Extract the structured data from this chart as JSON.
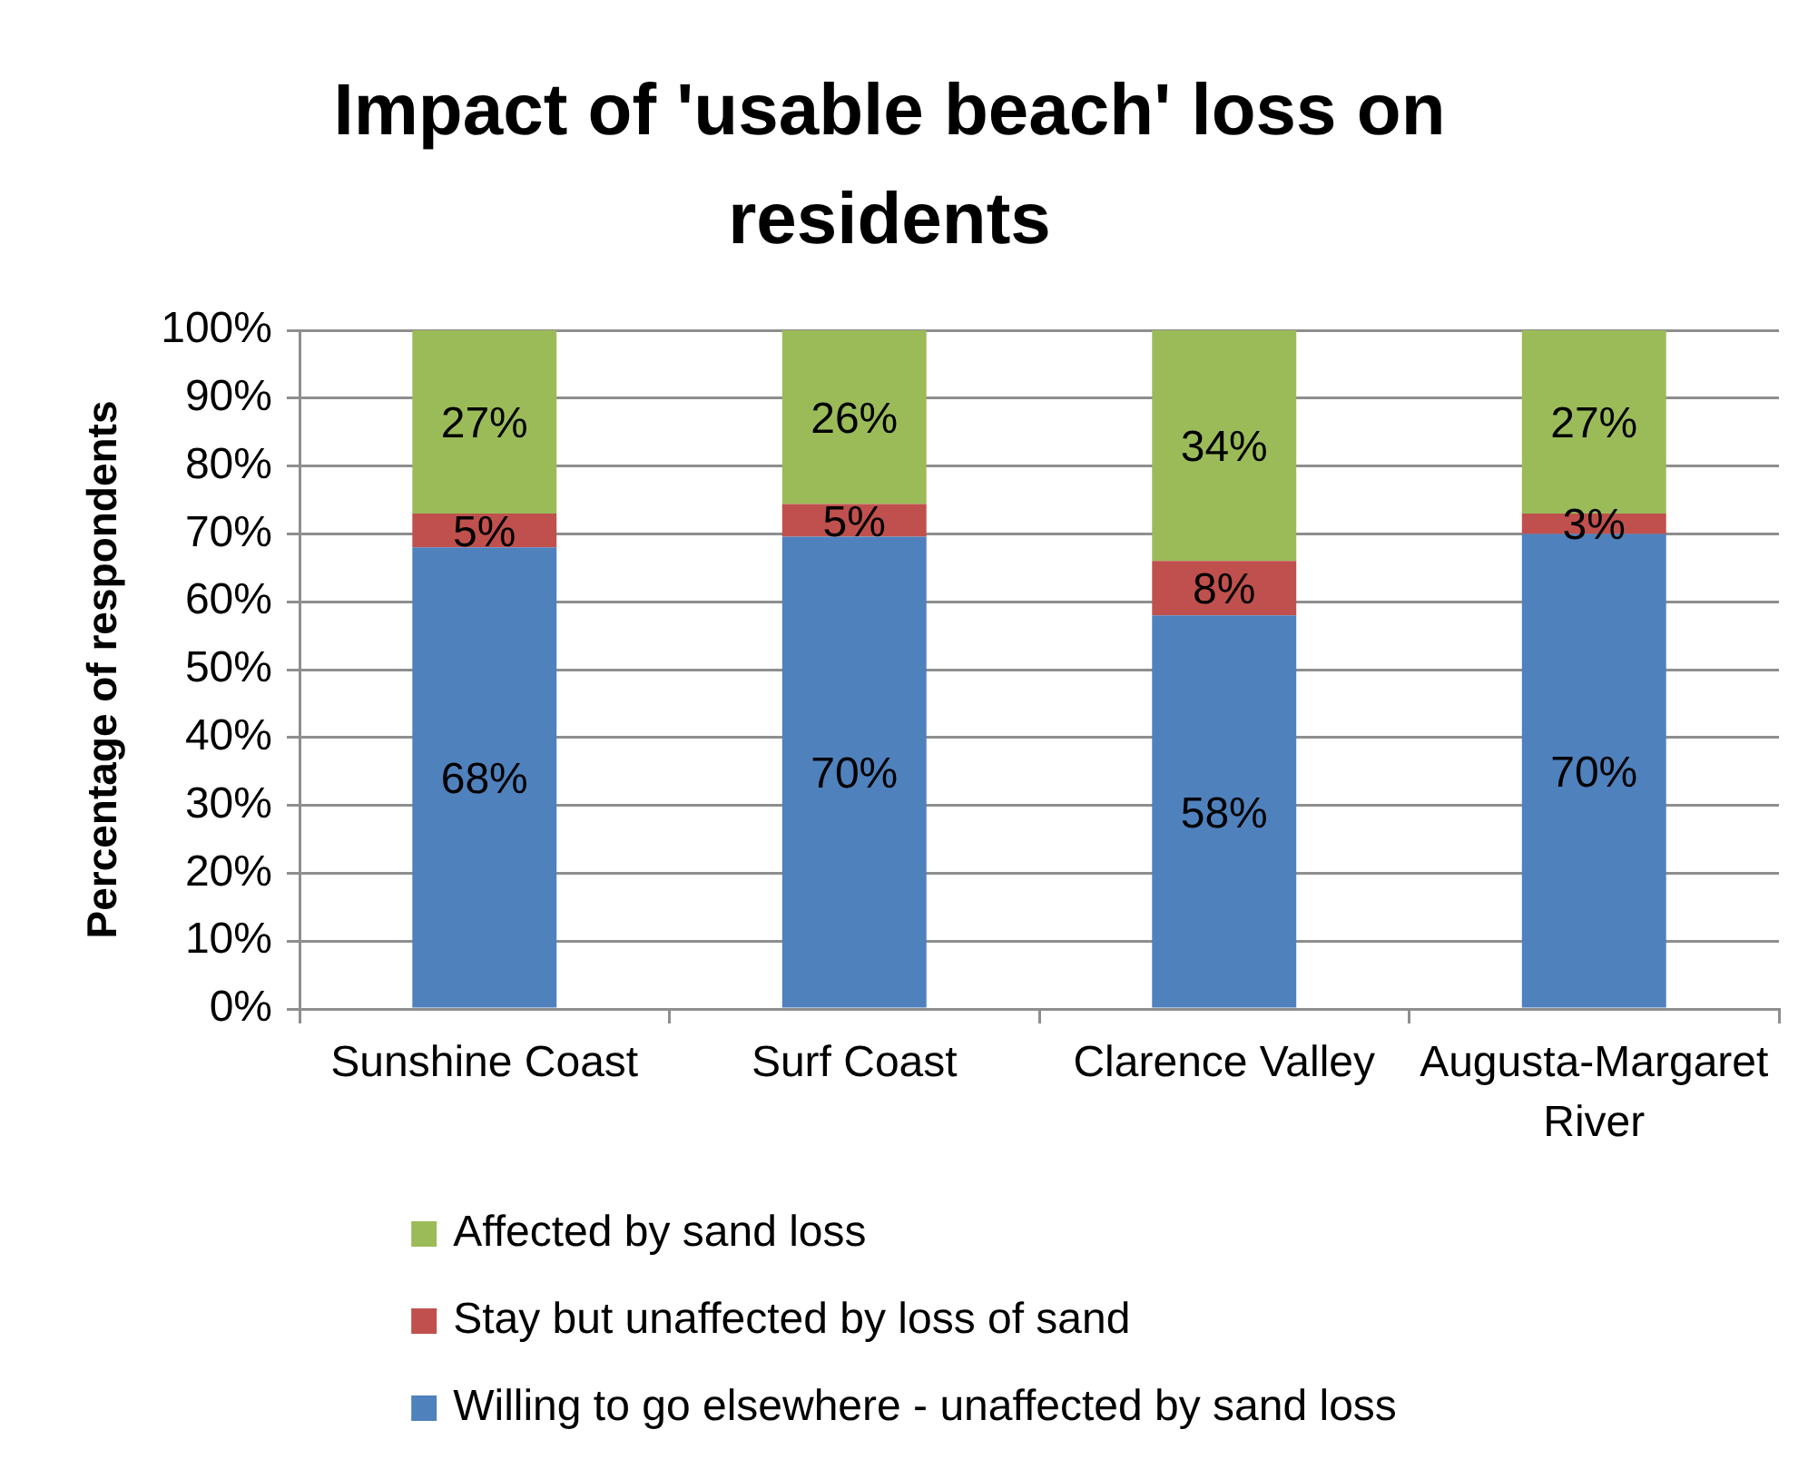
{
  "chart_data": {
    "type": "bar",
    "title": "Impact of 'usable beach' loss on residents",
    "ylabel": "Percentage of respondents",
    "categories": [
      "Sunshine Coast",
      "Surf Coast",
      "Clarence Valley",
      "Augusta-Margaret River"
    ],
    "stacked": true,
    "series": [
      {
        "name": "Willing to go elsewhere - unaffected by sand loss",
        "color": "#4f81bd",
        "values": [
          68,
          69.6,
          58,
          70
        ],
        "value_labels": [
          "68%",
          "70%",
          "58%",
          "70%"
        ]
      },
      {
        "name": "Stay but unaffected by loss of sand",
        "color": "#c0504d",
        "values": [
          5,
          4.8,
          8,
          3
        ],
        "value_labels": [
          "5%",
          "5%",
          "8%",
          "3%"
        ]
      },
      {
        "name": "Affected by sand loss",
        "color": "#9bbb59",
        "values": [
          27,
          25.6,
          34,
          27
        ],
        "value_labels": [
          "27%",
          "26%",
          "34%",
          "27%"
        ]
      }
    ],
    "ylim": [
      0,
      100
    ],
    "yticks": [
      {
        "value": 0,
        "label": "0%"
      },
      {
        "value": 10,
        "label": "10%"
      },
      {
        "value": 20,
        "label": "20%"
      },
      {
        "value": 30,
        "label": "30%"
      },
      {
        "value": 40,
        "label": "40%"
      },
      {
        "value": 50,
        "label": "50%"
      },
      {
        "value": 60,
        "label": "60%"
      },
      {
        "value": 70,
        "label": "70%"
      },
      {
        "value": 80,
        "label": "80%"
      },
      {
        "value": 90,
        "label": "90%"
      },
      {
        "value": 100,
        "label": "100%"
      }
    ],
    "grid": "y",
    "legend": "bottom"
  }
}
